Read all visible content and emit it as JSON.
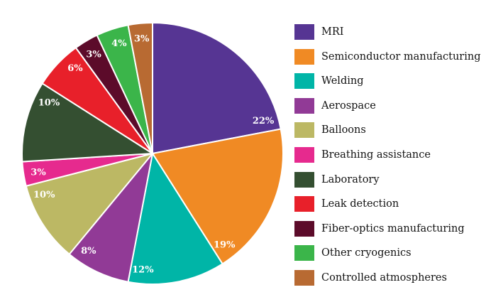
{
  "chart_data": {
    "type": "pie",
    "title": "",
    "legend_position": "right",
    "categories": [
      "MRI",
      "Semiconductor manufacturing",
      "Welding",
      "Aerospace",
      "Balloons",
      "Breathing assistance",
      "Laboratory",
      "Leak detection",
      "Fiber-optics manufacturing",
      "Other cryogenics",
      "Controlled atmospheres"
    ],
    "values": [
      22,
      19,
      12,
      8,
      10,
      3,
      10,
      6,
      3,
      4,
      3
    ],
    "labels": [
      "22%",
      "19%",
      "12%",
      "8%",
      "10%",
      "3%",
      "10%",
      "6%",
      "3%",
      "4%",
      "3%"
    ],
    "colors": [
      "#563593",
      "#f08a24",
      "#00b5a7",
      "#913a96",
      "#bcb864",
      "#e62a8e",
      "#344f31",
      "#e8202a",
      "#5c0b2a",
      "#3bb54a",
      "#b86a32"
    ]
  }
}
